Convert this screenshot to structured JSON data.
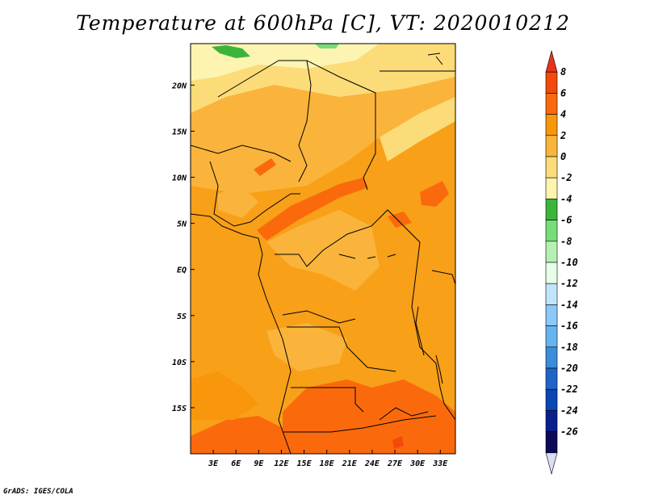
{
  "title": "Temperature at 600hPa [C], VT: 2020010212",
  "credit": "GrADS: IGES/COLA",
  "map": {
    "lon_labels": [
      "3E",
      "6E",
      "9E",
      "12E",
      "15E",
      "18E",
      "21E",
      "24E",
      "27E",
      "30E",
      "33E"
    ],
    "lat_labels": [
      "20N",
      "15N",
      "10N",
      "5N",
      "EQ",
      "5S",
      "10S",
      "15S"
    ],
    "lon_range": [
      0,
      35
    ],
    "lat_range": [
      -20,
      24.5
    ],
    "lon_values": [
      3,
      6,
      9,
      12,
      15,
      18,
      21,
      24,
      27,
      30,
      33
    ],
    "lat_values": [
      20,
      15,
      10,
      5,
      0,
      -5,
      -10,
      -15
    ]
  },
  "colorbar": {
    "labels": [
      "8",
      "6",
      "4",
      "2",
      "0",
      "-2",
      "-4",
      "-6",
      "-8",
      "-10",
      "-12",
      "-14",
      "-16",
      "-18",
      "-20",
      "-22",
      "-24",
      "-26"
    ],
    "colors": [
      "#e8321c",
      "#f24a0c",
      "#fa6a0c",
      "#f8960c",
      "#fab43c",
      "#fcdc78",
      "#fcf4b0",
      "#3cb43c",
      "#78dc78",
      "#b4f0b4",
      "#e6ffe6",
      "#c0e4fc",
      "#8cc8f8",
      "#64b4f0",
      "#3c8cdc",
      "#1e64c8",
      "#0a46b4",
      "#0a1e8c",
      "#0a0a5a",
      "#dcdcf4"
    ]
  }
}
